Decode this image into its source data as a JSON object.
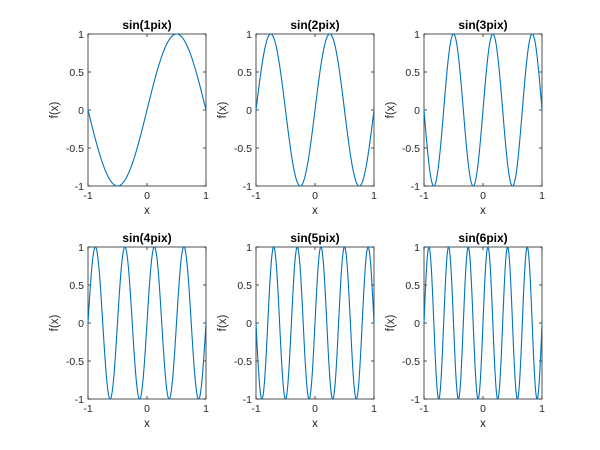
{
  "chart_data": [
    {
      "type": "line",
      "title": "sin(1pix)",
      "frequency": 1,
      "xlabel": "x",
      "ylabel": "f(x)",
      "xlim": [
        -1,
        1
      ],
      "ylim": [
        -1,
        1
      ],
      "xticks": [
        -1,
        0,
        1
      ],
      "xtick_labels": [
        "-1",
        "0",
        "1"
      ],
      "yticks": [
        -1,
        -0.5,
        0,
        0.5,
        1
      ],
      "ytick_labels": [
        "-1",
        "-0.5",
        "0",
        "0.5",
        "1"
      ],
      "grid": false,
      "color": "#0072BD"
    },
    {
      "type": "line",
      "title": "sin(2pix)",
      "frequency": 2,
      "xlabel": "x",
      "ylabel": "f(x)",
      "xlim": [
        -1,
        1
      ],
      "ylim": [
        -1,
        1
      ],
      "xticks": [
        -1,
        0,
        1
      ],
      "xtick_labels": [
        "-1",
        "0",
        "1"
      ],
      "yticks": [
        -1,
        -0.5,
        0,
        0.5,
        1
      ],
      "ytick_labels": [
        "-1",
        "-0.5",
        "0",
        "0.5",
        "1"
      ],
      "grid": false,
      "color": "#0072BD"
    },
    {
      "type": "line",
      "title": "sin(3pix)",
      "frequency": 3,
      "xlabel": "x",
      "ylabel": "f(x)",
      "xlim": [
        -1,
        1
      ],
      "ylim": [
        -1,
        1
      ],
      "xticks": [
        -1,
        0,
        1
      ],
      "xtick_labels": [
        "-1",
        "0",
        "1"
      ],
      "yticks": [
        -1,
        -0.5,
        0,
        0.5,
        1
      ],
      "ytick_labels": [
        "-1",
        "-0.5",
        "0",
        "0.5",
        "1"
      ],
      "grid": false,
      "color": "#0072BD"
    },
    {
      "type": "line",
      "title": "sin(4pix)",
      "frequency": 4,
      "xlabel": "x",
      "ylabel": "f(x)",
      "xlim": [
        -1,
        1
      ],
      "ylim": [
        -1,
        1
      ],
      "xticks": [
        -1,
        0,
        1
      ],
      "xtick_labels": [
        "-1",
        "0",
        "1"
      ],
      "yticks": [
        -1,
        -0.5,
        0,
        0.5,
        1
      ],
      "ytick_labels": [
        "-1",
        "-0.5",
        "0",
        "0.5",
        "1"
      ],
      "grid": false,
      "color": "#0072BD"
    },
    {
      "type": "line",
      "title": "sin(5pix)",
      "frequency": 5,
      "xlabel": "x",
      "ylabel": "f(x)",
      "xlim": [
        -1,
        1
      ],
      "ylim": [
        -1,
        1
      ],
      "xticks": [
        -1,
        0,
        1
      ],
      "xtick_labels": [
        "-1",
        "0",
        "1"
      ],
      "yticks": [
        -1,
        -0.5,
        0,
        0.5,
        1
      ],
      "ytick_labels": [
        "-1",
        "-0.5",
        "0",
        "0.5",
        "1"
      ],
      "grid": false,
      "color": "#0072BD"
    },
    {
      "type": "line",
      "title": "sin(6pix)",
      "frequency": 6,
      "xlabel": "x",
      "ylabel": "f(x)",
      "xlim": [
        -1,
        1
      ],
      "ylim": [
        -1,
        1
      ],
      "xticks": [
        -1,
        0,
        1
      ],
      "xtick_labels": [
        "-1",
        "0",
        "1"
      ],
      "yticks": [
        -1,
        -0.5,
        0,
        0.5,
        1
      ],
      "ytick_labels": [
        "-1",
        "-0.5",
        "0",
        "0.5",
        "1"
      ],
      "grid": false,
      "color": "#0072BD"
    }
  ]
}
